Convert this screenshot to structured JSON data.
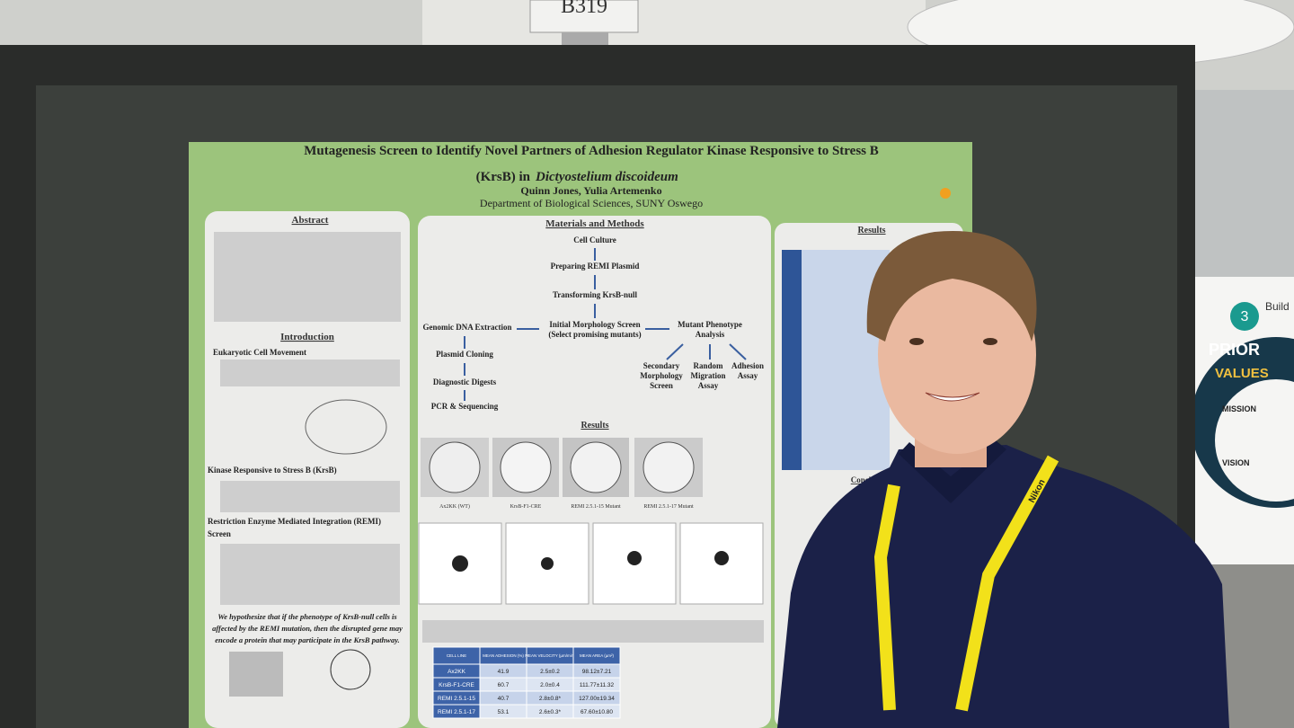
{
  "sign": "B319",
  "poster": {
    "title_line1": "Mutagenesis Screen to Identify Novel Partners of Adhesion Regulator Kinase Responsive to Stress B",
    "title_line2": "(KrsB) in",
    "species": "Dictyostelium discoideum",
    "authors": "Quinn Jones, Yulia Artemenko",
    "department": "Department of Biological Sciences, SUNY Oswego",
    "left": {
      "abstract": "Abstract",
      "introduction": "Introduction",
      "sub1": "Eukaryotic Cell Movement",
      "sub2": "Kinase Responsive to Stress B (KrsB)",
      "sub3": "Restriction Enzyme Mediated Integration (REMI)",
      "sub3b": "Screen",
      "hypothesis": [
        "We hypothesize that if the phenotype of KrsB-null cells is",
        "affected by the REMI mutation, then the disrupted gene may",
        "encode a protein that may participate in the KrsB pathway."
      ]
    },
    "methods": {
      "heading": "Materials and Methods",
      "steps": [
        "Cell Culture",
        "Preparing REMI Plasmid",
        "Transforming KrsB-null",
        "Initial Morphology Screen",
        "(Select promising mutants)"
      ],
      "left_branch": [
        "Genomic DNA Extraction",
        "Plasmid Cloning",
        "Diagnostic Digests",
        "PCR & Sequencing"
      ],
      "right_branch": [
        "Mutant Phenotype",
        "Analysis"
      ],
      "assays": [
        [
          "Secondary",
          "Morphology",
          "Screen"
        ],
        [
          "Random",
          "Migration",
          "Assay"
        ],
        [
          "Adhesion",
          "Assay"
        ]
      ]
    },
    "results_mid": {
      "heading": "Results",
      "images": [
        "Ax2KK (WT)",
        "KrsB-F1-CRE",
        "REMI 2.5.1-15 Mutant",
        "REMI 2.5.1-17 Mutant"
      ]
    },
    "table": {
      "header": [
        "CELL LINE",
        "MEAN ADHESION (%)",
        "MEAN VELOCITY (µm/min)",
        "MEAN AREA (µm²)"
      ],
      "rows": [
        [
          "Ax2KK",
          "41.9",
          "2.5±0.2",
          "98.12±7.21"
        ],
        [
          "KrsB-F1-CRE",
          "60.7",
          "2.0±0.4",
          "111.77±11.32"
        ],
        [
          "REMI 2.5.1-15",
          "40.7",
          "2.8±0.8*",
          "127.00±19.34"
        ],
        [
          "REMI 2.5.1-17",
          "53.1",
          "2.6±0.3*",
          "67.60±10.80"
        ]
      ]
    },
    "right": {
      "results": "Results",
      "conclusions": "Conclusions"
    }
  },
  "lanyard": "Nikon",
  "banner": {
    "number": "3",
    "build": "Build",
    "priorities": "PRIOR",
    "values": "VALUES",
    "mission": "MISSION",
    "vision": "VISION"
  }
}
